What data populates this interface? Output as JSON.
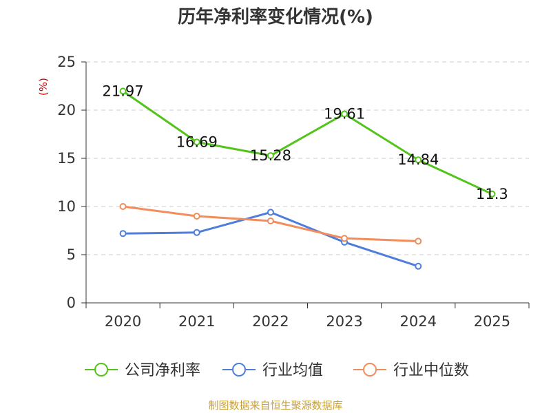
{
  "chart_data": {
    "type": "line",
    "title": "历年净利率变化情况(%)",
    "ylabel": "(%)",
    "xlabel": "",
    "categories": [
      "2020",
      "2021",
      "2022",
      "2023",
      "2024",
      "2025"
    ],
    "ylim": [
      0,
      25
    ],
    "yticks": [
      0,
      5,
      10,
      15,
      20,
      25
    ],
    "grid": true,
    "legend_position": "bottom",
    "series": [
      {
        "name": "公司净利率",
        "color": "#52c41a",
        "values": [
          21.97,
          16.69,
          15.28,
          19.61,
          14.84,
          11.3
        ],
        "labels": [
          "21.97",
          "16.69",
          "15.28",
          "19.61",
          "14.84",
          "11.3"
        ]
      },
      {
        "name": "行业均值",
        "color": "#4f7ddc",
        "values": [
          7.2,
          7.3,
          9.4,
          6.3,
          3.8,
          null
        ]
      },
      {
        "name": "行业中位数",
        "color": "#f28c5a",
        "values": [
          10.0,
          9.0,
          8.5,
          6.7,
          6.4,
          null
        ]
      }
    ],
    "source": "制图数据来自恒生聚源数据库",
    "colors": {
      "axis": "#333333",
      "grid": "#cccccc",
      "unit": "#cc0000",
      "source": "#c8a03c"
    }
  }
}
